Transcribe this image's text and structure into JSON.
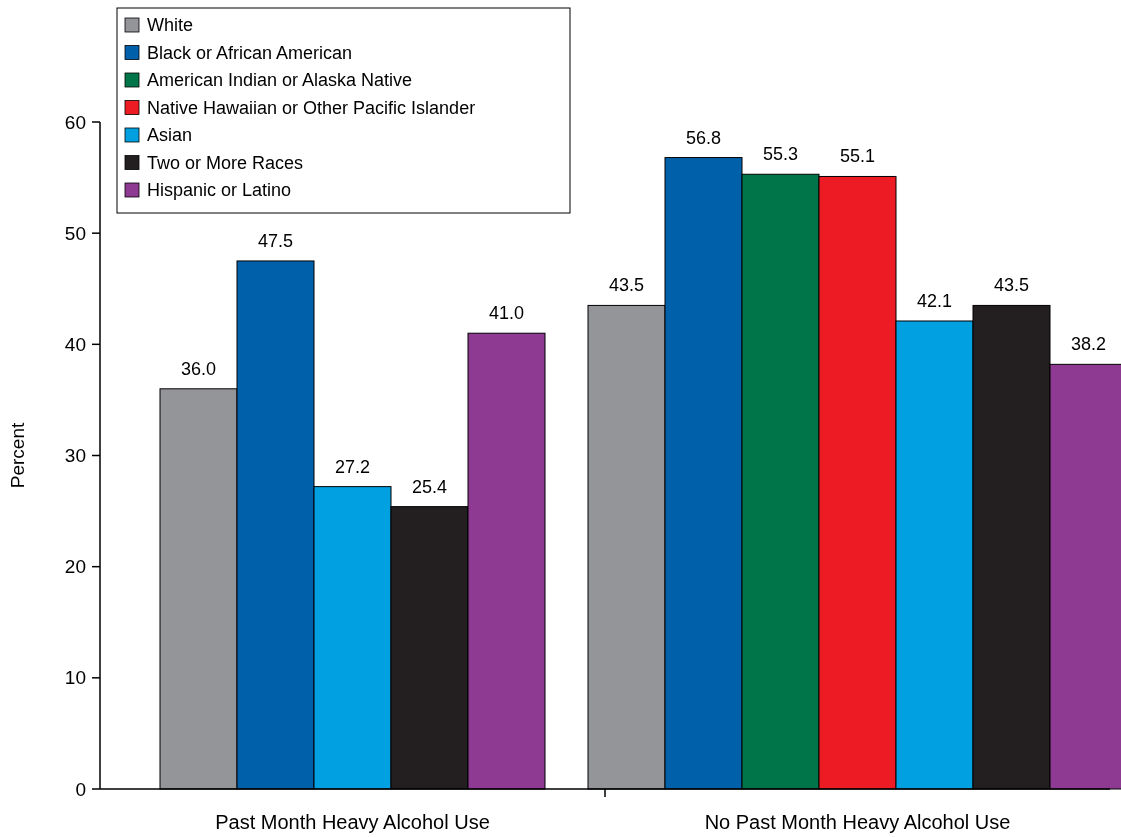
{
  "chart_data": {
    "type": "bar",
    "ylabel": "Percent",
    "categories": [
      "Past Month Heavy Alcohol Use",
      "No Past Month Heavy Alcohol Use"
    ],
    "series": [
      {
        "name": "White",
        "color": "#939598",
        "values": [
          36.0,
          43.5
        ],
        "value_labels": [
          "36.0",
          "43.5"
        ]
      },
      {
        "name": "Black or African American",
        "color": "#0060a9",
        "values": [
          47.5,
          56.8
        ],
        "value_labels": [
          "47.5",
          "56.8"
        ]
      },
      {
        "name": "American Indian or Alaska Native",
        "color": "#00754a",
        "values": [
          null,
          55.3
        ],
        "value_labels": [
          null,
          "55.3"
        ]
      },
      {
        "name": "Native Hawaiian or Other Pacific Islander",
        "color": "#ed1c24",
        "values": [
          null,
          55.1
        ],
        "value_labels": [
          null,
          "55.1"
        ]
      },
      {
        "name": "Asian",
        "color": "#00a0e1",
        "values": [
          27.2,
          42.1
        ],
        "value_labels": [
          "27.2",
          "42.1"
        ]
      },
      {
        "name": "Two or More Races",
        "color": "#231f20",
        "values": [
          25.4,
          43.5
        ],
        "value_labels": [
          "25.4",
          "43.5"
        ]
      },
      {
        "name": "Hispanic or Latino",
        "color": "#8e3a93",
        "values": [
          41.0,
          38.2
        ],
        "value_labels": [
          "41.0",
          "38.2"
        ]
      }
    ],
    "ylim": [
      0,
      60
    ],
    "yticks": [
      0,
      10,
      20,
      30,
      40,
      50,
      60
    ],
    "legend": "top left"
  }
}
